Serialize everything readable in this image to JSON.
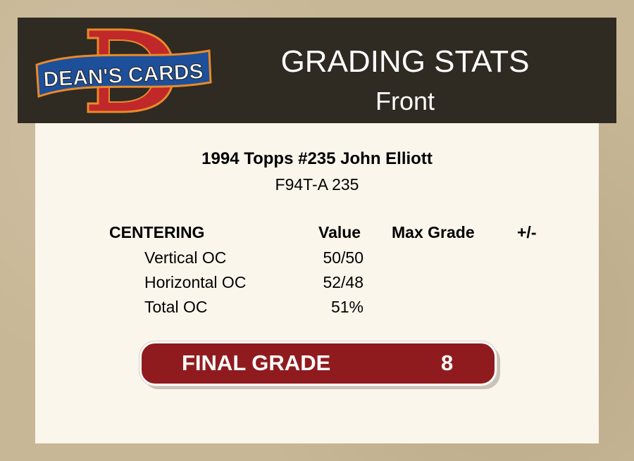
{
  "header": {
    "logo_text": "DEAN'S CARDS",
    "title": "GRADING STATS",
    "subtitle": "Front"
  },
  "card": {
    "name": "1994 Topps #235 John Elliott",
    "code": "F94T-A 235"
  },
  "table": {
    "headers": {
      "section": "CENTERING",
      "value": "Value",
      "max_grade": "Max Grade",
      "plus_minus": "+/-"
    },
    "rows": [
      {
        "label": "Vertical OC",
        "value": "50/50"
      },
      {
        "label": "Horizontal OC",
        "value": "52/48"
      },
      {
        "label": "Total OC",
        "value": "51%"
      }
    ]
  },
  "final": {
    "label": "FINAL GRADE",
    "value": "8"
  },
  "colors": {
    "header_bg": "#2f2a22",
    "panel_bg": "#fbf6ec",
    "grade_red": "#901b1e",
    "logo_red": "#c0282a",
    "logo_blue": "#1d4f9a"
  }
}
